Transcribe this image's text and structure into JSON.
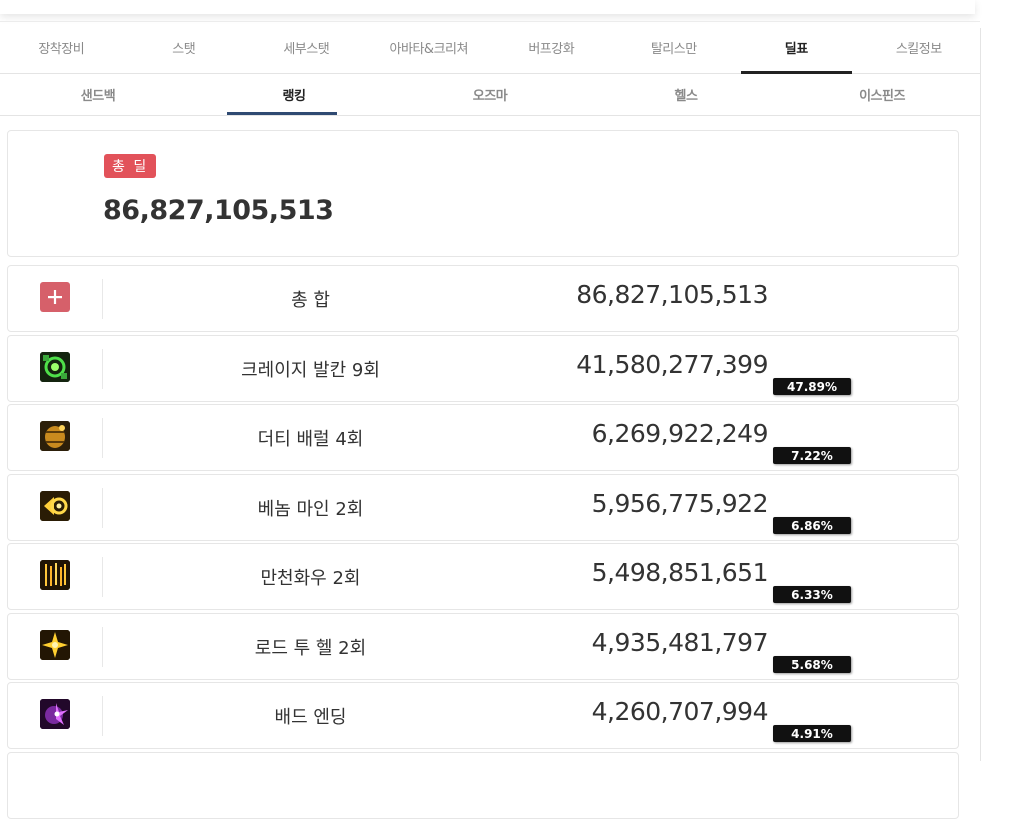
{
  "main_tabs": [
    "장착장비",
    "스탯",
    "세부스탯",
    "아바타&크리쳐",
    "버프강화",
    "탈리스만",
    "딜표",
    "스킬정보"
  ],
  "main_tab_active_index": 6,
  "sub_tabs": [
    "샌드백",
    "랭킹",
    "오즈마",
    "헬스",
    "이스핀즈"
  ],
  "sub_tab_active_index": 1,
  "summary": {
    "badge": "총 딜",
    "value": "86,827,105,513"
  },
  "total_row": {
    "icon": "plus-icon",
    "name": "총 합",
    "damage": "86,827,105,513"
  },
  "skills": [
    {
      "icon": "crazy-vulcan-icon",
      "name": "크레이지 발칸 9회",
      "damage": "41,580,277,399",
      "percent": "47.89%"
    },
    {
      "icon": "dirty-barrel-icon",
      "name": "더티 배럴 4회",
      "damage": "6,269,922,249",
      "percent": "7.22%"
    },
    {
      "icon": "venom-mine-icon",
      "name": "베놈 마인 2회",
      "damage": "5,956,775,922",
      "percent": "6.86%"
    },
    {
      "icon": "mancheon-hwau-icon",
      "name": "만천화우 2회",
      "damage": "5,498,851,651",
      "percent": "6.33%"
    },
    {
      "icon": "road-to-hell-icon",
      "name": "로드 투 헬 2회",
      "damage": "4,935,481,797",
      "percent": "5.68%"
    },
    {
      "icon": "bad-ending-icon",
      "name": "배드 엔딩",
      "damage": "4,260,707,994",
      "percent": "4.91%"
    }
  ],
  "colors": {
    "badge_red": "#e2525a",
    "active_tab_underline": "#222222",
    "active_subtab_underline": "#2f4a72"
  }
}
